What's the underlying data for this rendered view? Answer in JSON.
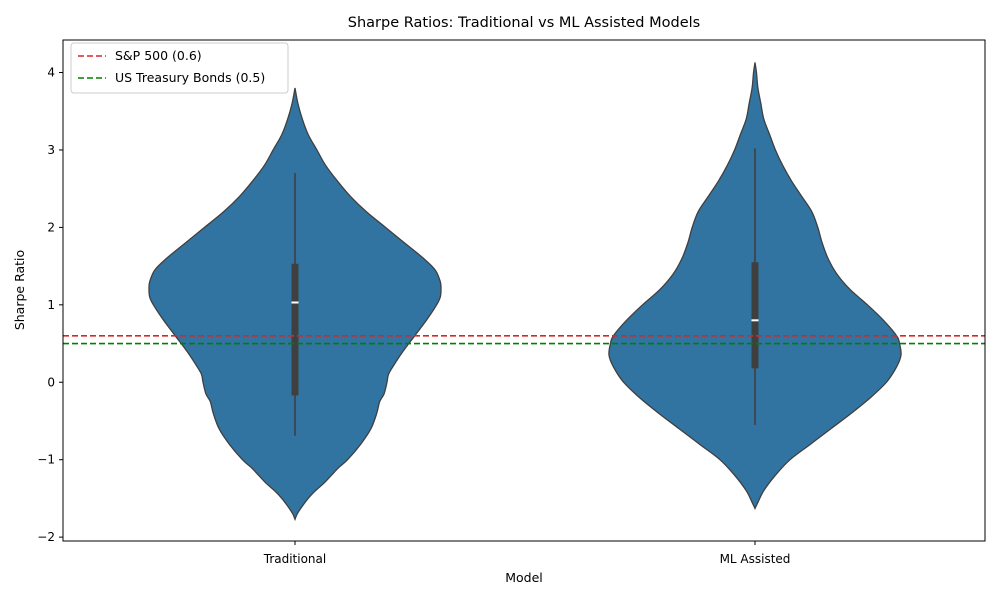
{
  "chart_data": {
    "type": "violin",
    "title": "Sharpe Ratios: Traditional vs ML Assisted Models",
    "xlabel": "Model",
    "ylabel": "Sharpe Ratio",
    "ylim": [
      -2.05,
      4.42
    ],
    "yticks": [
      -2,
      -1,
      0,
      1,
      2,
      3,
      4
    ],
    "ytick_labels": [
      "−2",
      "−1",
      "0",
      "1",
      "2",
      "3",
      "4"
    ],
    "categories": [
      "Traditional",
      "ML Assisted"
    ],
    "violin_color": "#3274a1",
    "violin_edge_color": "#3f3f3f",
    "grid": false,
    "legend_position": "top-left",
    "violins": [
      {
        "category": "Traditional",
        "median": 1.03,
        "q1": -0.17,
        "q3": 1.53,
        "whisker_low": -0.69,
        "whisker_high": 2.7,
        "density": [
          [
            -1.77,
            0.0
          ],
          [
            -1.7,
            0.015
          ],
          [
            -1.6,
            0.05
          ],
          [
            -1.5,
            0.09
          ],
          [
            -1.4,
            0.14
          ],
          [
            -1.3,
            0.2
          ],
          [
            -1.2,
            0.25
          ],
          [
            -1.1,
            0.3
          ],
          [
            -1.0,
            0.36
          ],
          [
            -0.8,
            0.45
          ],
          [
            -0.6,
            0.52
          ],
          [
            -0.4,
            0.56
          ],
          [
            -0.25,
            0.58
          ],
          [
            -0.15,
            0.61
          ],
          [
            0.0,
            0.63
          ],
          [
            0.1,
            0.64
          ],
          [
            0.2,
            0.67
          ],
          [
            0.4,
            0.74
          ],
          [
            0.6,
            0.82
          ],
          [
            0.8,
            0.9
          ],
          [
            1.0,
            0.97
          ],
          [
            1.1,
            0.995
          ],
          [
            1.2,
            1.0
          ],
          [
            1.3,
            0.995
          ],
          [
            1.45,
            0.96
          ],
          [
            1.6,
            0.88
          ],
          [
            1.8,
            0.75
          ],
          [
            2.0,
            0.62
          ],
          [
            2.2,
            0.49
          ],
          [
            2.4,
            0.38
          ],
          [
            2.6,
            0.29
          ],
          [
            2.8,
            0.21
          ],
          [
            3.0,
            0.15
          ],
          [
            3.2,
            0.09
          ],
          [
            3.4,
            0.05
          ],
          [
            3.6,
            0.02
          ],
          [
            3.8,
            0.0
          ]
        ]
      },
      {
        "category": "ML Assisted",
        "median": 0.8,
        "q1": 0.18,
        "q3": 1.55,
        "whisker_low": -0.55,
        "whisker_high": 3.02,
        "density": [
          [
            -1.63,
            0.0
          ],
          [
            -1.55,
            0.02
          ],
          [
            -1.4,
            0.06
          ],
          [
            -1.2,
            0.14
          ],
          [
            -1.0,
            0.24
          ],
          [
            -0.8,
            0.38
          ],
          [
            -0.6,
            0.52
          ],
          [
            -0.4,
            0.66
          ],
          [
            -0.2,
            0.79
          ],
          [
            0.0,
            0.9
          ],
          [
            0.2,
            0.97
          ],
          [
            0.35,
            1.0
          ],
          [
            0.5,
            0.99
          ],
          [
            0.6,
            0.97
          ],
          [
            0.8,
            0.88
          ],
          [
            1.0,
            0.77
          ],
          [
            1.2,
            0.65
          ],
          [
            1.4,
            0.56
          ],
          [
            1.6,
            0.5
          ],
          [
            1.8,
            0.46
          ],
          [
            2.0,
            0.43
          ],
          [
            2.2,
            0.39
          ],
          [
            2.4,
            0.32
          ],
          [
            2.6,
            0.25
          ],
          [
            2.8,
            0.19
          ],
          [
            3.0,
            0.14
          ],
          [
            3.2,
            0.1
          ],
          [
            3.4,
            0.06
          ],
          [
            3.6,
            0.04
          ],
          [
            3.8,
            0.02
          ],
          [
            4.0,
            0.01
          ],
          [
            4.13,
            0.0
          ]
        ]
      }
    ],
    "reference_lines": [
      {
        "label": "S&P 500 (0.6)",
        "y": 0.6,
        "color": "#d62728"
      },
      {
        "label": "US Treasury Bonds (0.5)",
        "y": 0.5,
        "color": "#008000"
      }
    ]
  }
}
